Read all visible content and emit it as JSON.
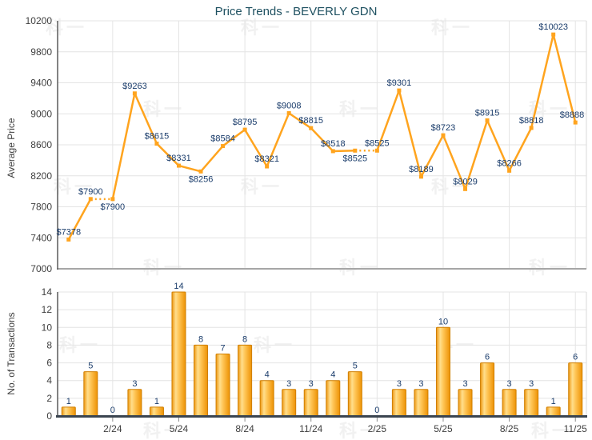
{
  "watermark": {
    "text": "科一"
  },
  "chart_data": [
    {
      "type": "line",
      "title": "Price Trends - BEVERLY GDN",
      "ylabel": "Average Price",
      "ylim": [
        7000,
        10200
      ],
      "yticks": [
        7000,
        7400,
        7800,
        8200,
        8600,
        9000,
        9400,
        9800,
        10200
      ],
      "n_points": 24,
      "values": [
        7378,
        7900,
        7900,
        9263,
        8615,
        8331,
        8256,
        8584,
        8795,
        8321,
        9008,
        8815,
        8518,
        8525,
        8525,
        9301,
        8189,
        8723,
        8029,
        8915,
        8266,
        8818,
        10023,
        8888
      ],
      "point_labels": [
        "$7378",
        "$7900",
        "$7900",
        "$9263",
        "$8615",
        "$8331",
        "$8256",
        "$8584",
        "$8795",
        "$8321",
        "$9008",
        "$8815",
        "$8518",
        "$8525",
        "$8525",
        "$9301",
        "$8189",
        "$8723",
        "$8029",
        "$8915",
        "$8266",
        "$8818",
        "$10023",
        "$8888"
      ],
      "label_side": [
        "above",
        "above",
        "below",
        "above",
        "above",
        "above",
        "below",
        "above",
        "above",
        "above",
        "above",
        "above",
        "above",
        "below",
        "above",
        "above",
        "above",
        "above",
        "above",
        "above",
        "above",
        "above",
        "above",
        "above"
      ],
      "dotted_segments": [
        [
          1,
          2
        ],
        [
          13,
          14
        ]
      ],
      "xtick_indices": [
        2,
        5,
        8,
        11,
        14,
        17,
        20,
        23
      ],
      "xtick_labels": [
        "2/24",
        "5/24",
        "8/24",
        "11/24",
        "2/25",
        "5/25",
        "8/25",
        "11/25"
      ],
      "grid": true,
      "legend": null,
      "colors": {
        "line": "#FFA41E",
        "point_label": "#1A3C6B"
      }
    },
    {
      "type": "bar",
      "ylabel": "No. of Transactions",
      "ylim": [
        0,
        14
      ],
      "yticks": [
        0,
        2,
        4,
        6,
        8,
        10,
        12,
        14
      ],
      "n_points": 24,
      "values": [
        1,
        5,
        0,
        3,
        1,
        14,
        8,
        7,
        8,
        4,
        3,
        3,
        4,
        5,
        0,
        3,
        3,
        10,
        3,
        6,
        3,
        3,
        1,
        6
      ],
      "bar_labels": [
        "1",
        "5",
        "0",
        "3",
        "1",
        "14",
        "8",
        "7",
        "8",
        "4",
        "3",
        "3",
        "4",
        "5",
        "0",
        "3",
        "3",
        "10",
        "3",
        "6",
        "3",
        "3",
        "1",
        "6"
      ],
      "xtick_indices": [
        2,
        5,
        8,
        11,
        14,
        17,
        20,
        23
      ],
      "xtick_labels": [
        "2/24",
        "5/24",
        "8/24",
        "11/24",
        "2/25",
        "5/25",
        "8/25",
        "11/25"
      ],
      "grid": true,
      "legend": null,
      "colors": {
        "bar": "#FFA41E",
        "bar_border": "#D07F00",
        "bar_label": "#1A3C6B"
      }
    }
  ],
  "axis_style": {
    "tick_label_color": "#3F3F3F",
    "grid_color": "#E4E4E4"
  }
}
